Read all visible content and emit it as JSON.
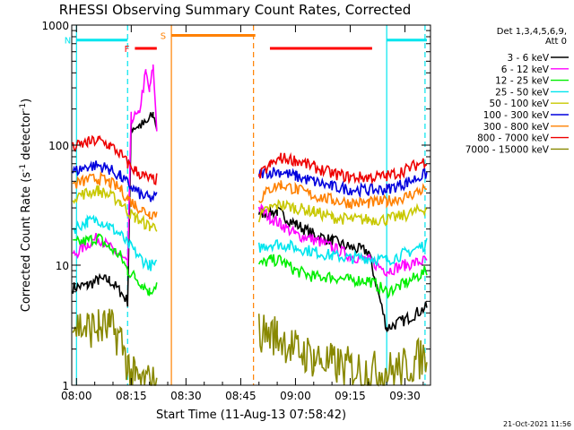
{
  "chart_data": {
    "type": "line",
    "title": "RHESSI Observing Summary Count Rates, Corrected",
    "xlabel": "Start Time (11-Aug-13 07:58:42)",
    "ylabel": "Corrected Count Rate (s⁻¹ detector⁻¹)",
    "ylabel_main": "Corrected Count Rate (s",
    "ylabel_mid": " detector",
    "ylabel_end": ")",
    "ylabel_sup": "-1",
    "yscale": "log",
    "xlim_min": [
      -1.3,
      97
    ],
    "ylim": [
      1,
      1000
    ],
    "x_ticks": [
      {
        "min": 0,
        "label": "08:00"
      },
      {
        "min": 15,
        "label": "08:15"
      },
      {
        "min": 30,
        "label": "08:30"
      },
      {
        "min": 45,
        "label": "08:45"
      },
      {
        "min": 60,
        "label": "09:00"
      },
      {
        "min": 75,
        "label": "09:15"
      },
      {
        "min": 90,
        "label": "09:30"
      }
    ],
    "y_ticks": [
      {
        "value": 1,
        "label": "1"
      },
      {
        "value": 10,
        "label": "10"
      },
      {
        "value": 100,
        "label": "100"
      },
      {
        "value": 1000,
        "label": "1000"
      }
    ],
    "legend": {
      "position": "right",
      "header": [
        "Det 1,3,4,5,6,9,",
        "Att 0"
      ]
    },
    "timestamp": "21-Oct-2021 11:56",
    "flags": [
      {
        "label": "F",
        "color": "#ff0000",
        "start": 16,
        "end": 22,
        "level": 640
      },
      {
        "label": "N",
        "color": "#00e5ee",
        "start": 0,
        "end": 14,
        "level": 750
      },
      {
        "label": "S",
        "color": "#ff8000",
        "start": 26,
        "end": 49,
        "level": 820
      },
      {
        "label": "",
        "color": "#ff0000",
        "start": 53,
        "end": 81,
        "level": 640
      },
      {
        "label": "",
        "color": "#00e5ee",
        "start": 85,
        "end": 96,
        "level": 750
      }
    ],
    "vlines": [
      {
        "min": 0,
        "color": "#00e5ee",
        "dashed": false
      },
      {
        "min": 14,
        "color": "#00e5ee",
        "dashed": true
      },
      {
        "min": 26,
        "color": "#ff8000",
        "dashed": false
      },
      {
        "min": 48.5,
        "color": "#ff8000",
        "dashed": true
      },
      {
        "min": 85,
        "color": "#00e5ee",
        "dashed": false
      },
      {
        "min": 95.5,
        "color": "#00e5ee",
        "dashed": true
      }
    ],
    "series": [
      {
        "name": "3 - 6 keV",
        "color": "#000000",
        "points": [
          [
            -1,
            6.5
          ],
          [
            3,
            6.8
          ],
          [
            6,
            7.5
          ],
          [
            9,
            7.5
          ],
          [
            12,
            6
          ],
          [
            14,
            5
          ],
          [
            15,
            140
          ],
          [
            17,
            145
          ],
          [
            19,
            150
          ],
          [
            21,
            180
          ],
          [
            22,
            140
          ],
          [
            50,
            27
          ],
          [
            55,
            28
          ],
          [
            60,
            22
          ],
          [
            65,
            18
          ],
          [
            70,
            16
          ],
          [
            75,
            14
          ],
          [
            80,
            13
          ],
          [
            85,
            3
          ],
          [
            90,
            3.5
          ],
          [
            96,
            4.5
          ]
        ]
      },
      {
        "name": "6 - 12 keV",
        "color": "#ff00ff",
        "points": [
          [
            -1,
            12
          ],
          [
            3,
            15
          ],
          [
            6,
            17
          ],
          [
            9,
            14
          ],
          [
            12,
            12
          ],
          [
            14,
            10
          ],
          [
            15,
            170
          ],
          [
            17,
            175
          ],
          [
            19,
            400
          ],
          [
            20,
            280
          ],
          [
            21,
            450
          ],
          [
            22,
            140
          ],
          [
            50,
            30
          ],
          [
            53,
            25
          ],
          [
            56,
            22
          ],
          [
            60,
            18
          ],
          [
            63,
            17
          ],
          [
            66,
            16
          ],
          [
            70,
            14
          ],
          [
            75,
            12
          ],
          [
            80,
            11
          ],
          [
            85,
            9
          ],
          [
            90,
            10
          ],
          [
            96,
            11
          ]
        ]
      },
      {
        "name": "12 - 25 keV",
        "color": "#00ee00",
        "points": [
          [
            -1,
            15
          ],
          [
            3,
            16
          ],
          [
            6,
            17
          ],
          [
            9,
            14
          ],
          [
            12,
            12
          ],
          [
            14,
            9
          ],
          [
            16,
            8
          ],
          [
            18,
            7
          ],
          [
            20,
            6
          ],
          [
            22,
            7
          ],
          [
            50,
            10
          ],
          [
            53,
            11
          ],
          [
            56,
            11
          ],
          [
            60,
            9
          ],
          [
            65,
            8
          ],
          [
            70,
            8
          ],
          [
            75,
            7.5
          ],
          [
            80,
            7.5
          ],
          [
            85,
            6
          ],
          [
            90,
            7
          ],
          [
            96,
            9
          ]
        ]
      },
      {
        "name": "25 - 50 keV",
        "color": "#00e5ee",
        "points": [
          [
            -1,
            20
          ],
          [
            3,
            23
          ],
          [
            6,
            24
          ],
          [
            9,
            21
          ],
          [
            12,
            18
          ],
          [
            14,
            15
          ],
          [
            16,
            13
          ],
          [
            18,
            11
          ],
          [
            20,
            10
          ],
          [
            22,
            10
          ],
          [
            50,
            14
          ],
          [
            53,
            15
          ],
          [
            56,
            15
          ],
          [
            60,
            14
          ],
          [
            65,
            13
          ],
          [
            70,
            12
          ],
          [
            75,
            11.5
          ],
          [
            80,
            11.5
          ],
          [
            85,
            11
          ],
          [
            90,
            12.5
          ],
          [
            96,
            15
          ]
        ]
      },
      {
        "name": "50 - 100 keV",
        "color": "#c8c800",
        "points": [
          [
            -1,
            37
          ],
          [
            3,
            40
          ],
          [
            6,
            42
          ],
          [
            9,
            38
          ],
          [
            12,
            34
          ],
          [
            14,
            28
          ],
          [
            16,
            25
          ],
          [
            18,
            23
          ],
          [
            20,
            21
          ],
          [
            22,
            21
          ],
          [
            50,
            25
          ],
          [
            53,
            30
          ],
          [
            56,
            32
          ],
          [
            60,
            30
          ],
          [
            65,
            28
          ],
          [
            70,
            25
          ],
          [
            75,
            24
          ],
          [
            80,
            24
          ],
          [
            85,
            24
          ],
          [
            90,
            26
          ],
          [
            96,
            30
          ]
        ]
      },
      {
        "name": "100 - 300 keV",
        "color": "#0000dd",
        "points": [
          [
            -1,
            60
          ],
          [
            3,
            66
          ],
          [
            6,
            68
          ],
          [
            9,
            63
          ],
          [
            12,
            55
          ],
          [
            14,
            48
          ],
          [
            16,
            42
          ],
          [
            18,
            38
          ],
          [
            20,
            36
          ],
          [
            22,
            37
          ],
          [
            50,
            58
          ],
          [
            53,
            60
          ],
          [
            56,
            60
          ],
          [
            60,
            55
          ],
          [
            65,
            50
          ],
          [
            70,
            45
          ],
          [
            75,
            43
          ],
          [
            80,
            42
          ],
          [
            85,
            43
          ],
          [
            90,
            48
          ],
          [
            96,
            58
          ]
        ]
      },
      {
        "name": "300 - 800 keV",
        "color": "#ff8000",
        "points": [
          [
            -1,
            47
          ],
          [
            3,
            51
          ],
          [
            6,
            53
          ],
          [
            9,
            49
          ],
          [
            12,
            43
          ],
          [
            14,
            36
          ],
          [
            16,
            32
          ],
          [
            18,
            29
          ],
          [
            20,
            27
          ],
          [
            22,
            27
          ],
          [
            50,
            35
          ],
          [
            53,
            43
          ],
          [
            56,
            47
          ],
          [
            60,
            43
          ],
          [
            65,
            38
          ],
          [
            70,
            35
          ],
          [
            75,
            33
          ],
          [
            80,
            33
          ],
          [
            85,
            34
          ],
          [
            90,
            37
          ],
          [
            96,
            44
          ]
        ]
      },
      {
        "name": "800 - 7000 keV",
        "color": "#ee0000",
        "points": [
          [
            -1,
            95
          ],
          [
            3,
            105
          ],
          [
            6,
            110
          ],
          [
            9,
            100
          ],
          [
            12,
            85
          ],
          [
            14,
            70
          ],
          [
            16,
            62
          ],
          [
            18,
            56
          ],
          [
            20,
            52
          ],
          [
            22,
            52
          ],
          [
            50,
            55
          ],
          [
            53,
            68
          ],
          [
            56,
            78
          ],
          [
            60,
            75
          ],
          [
            65,
            66
          ],
          [
            70,
            58
          ],
          [
            75,
            54
          ],
          [
            80,
            54
          ],
          [
            85,
            55
          ],
          [
            90,
            62
          ],
          [
            96,
            75
          ]
        ]
      },
      {
        "name": "7000 - 15000 keV",
        "color": "#888800",
        "points": [
          [
            -1,
            3.2
          ],
          [
            3,
            3
          ],
          [
            6,
            3
          ],
          [
            9,
            3
          ],
          [
            12,
            2.5
          ],
          [
            14,
            1.5
          ],
          [
            16,
            1.1
          ],
          [
            22,
            1
          ],
          [
            50,
            2.8
          ],
          [
            55,
            2.6
          ],
          [
            60,
            2
          ],
          [
            65,
            1.7
          ],
          [
            70,
            1.5
          ],
          [
            75,
            1.4
          ],
          [
            80,
            1.3
          ],
          [
            85,
            1.3
          ],
          [
            90,
            1.4
          ],
          [
            96,
            1.8
          ]
        ]
      }
    ]
  }
}
